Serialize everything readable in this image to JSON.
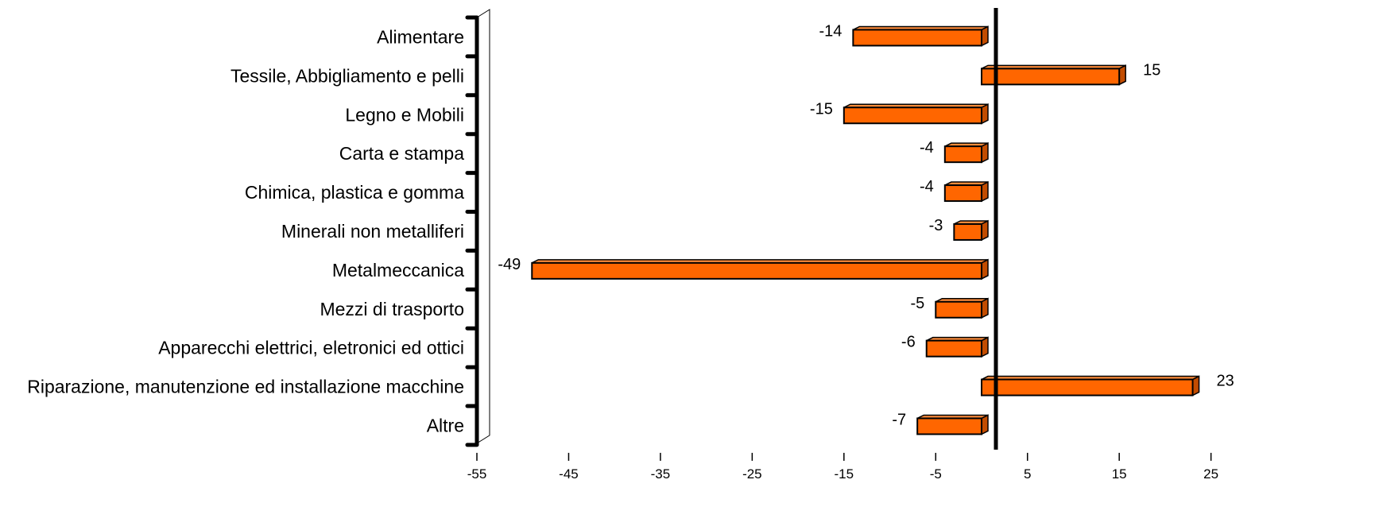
{
  "chart_data": {
    "type": "bar",
    "orientation": "horizontal",
    "categories": [
      "Alimentare",
      "Tessile, Abbigliamento e pelli",
      "Legno e Mobili",
      "Carta e stampa",
      "Chimica, plastica e gomma",
      "Minerali non metalliferi",
      "Metalmeccanica",
      "Mezzi di trasporto",
      "Apparecchi elettrici, eletronici ed ottici",
      "Riparazione, manutenzione ed installazione macchine",
      "Altre"
    ],
    "values": [
      -14,
      15,
      -15,
      -4,
      -4,
      -3,
      -49,
      -5,
      -6,
      23,
      -7
    ],
    "data_labels": [
      "-14",
      "15",
      "-15",
      "-4",
      "-4",
      "-3",
      "-49",
      "-5",
      "-6",
      "23",
      "-7"
    ],
    "xticks": [
      -55,
      -45,
      -35,
      -25,
      -15,
      -5,
      5,
      15,
      25
    ],
    "xtick_labels": [
      "-55",
      "-45",
      "-35",
      "-25",
      "-15",
      "-5",
      "5",
      "15",
      "25"
    ],
    "xlim": [
      -55,
      27
    ],
    "title": "",
    "xlabel": "",
    "ylabel": "",
    "grid": false,
    "colors": {
      "bar": "#ff6600",
      "bar_side": "#c24c00",
      "bar_top": "#ff8c3a",
      "axis": "#000000"
    }
  }
}
